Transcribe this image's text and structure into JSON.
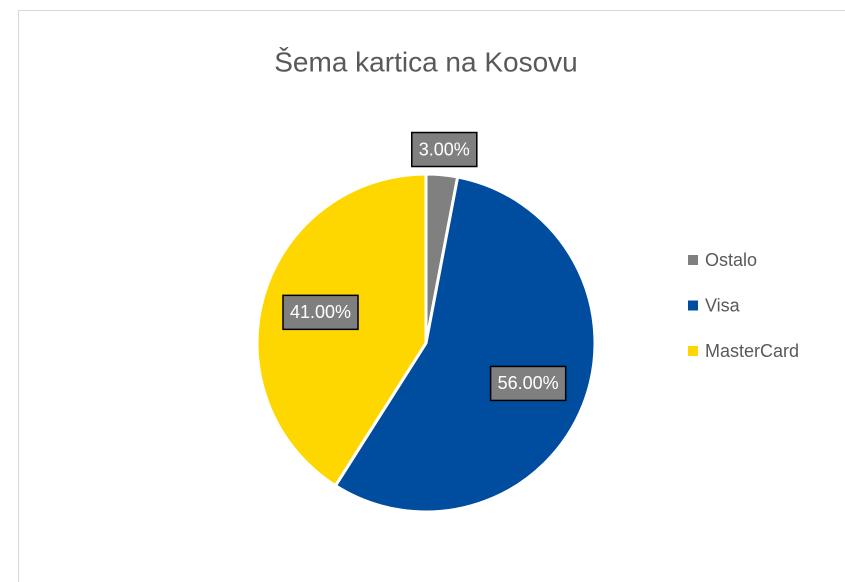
{
  "chart_data": {
    "type": "pie",
    "title": "Šema kartica na Kosovu",
    "categories": [
      "Ostalo",
      "Visa",
      "MasterCard"
    ],
    "values": [
      3,
      56,
      41
    ],
    "value_labels": [
      "3.00%",
      "56.00%",
      "41.00%"
    ],
    "colors": [
      "#808080",
      "#004c9f",
      "#ffd700"
    ],
    "legend": "right"
  }
}
